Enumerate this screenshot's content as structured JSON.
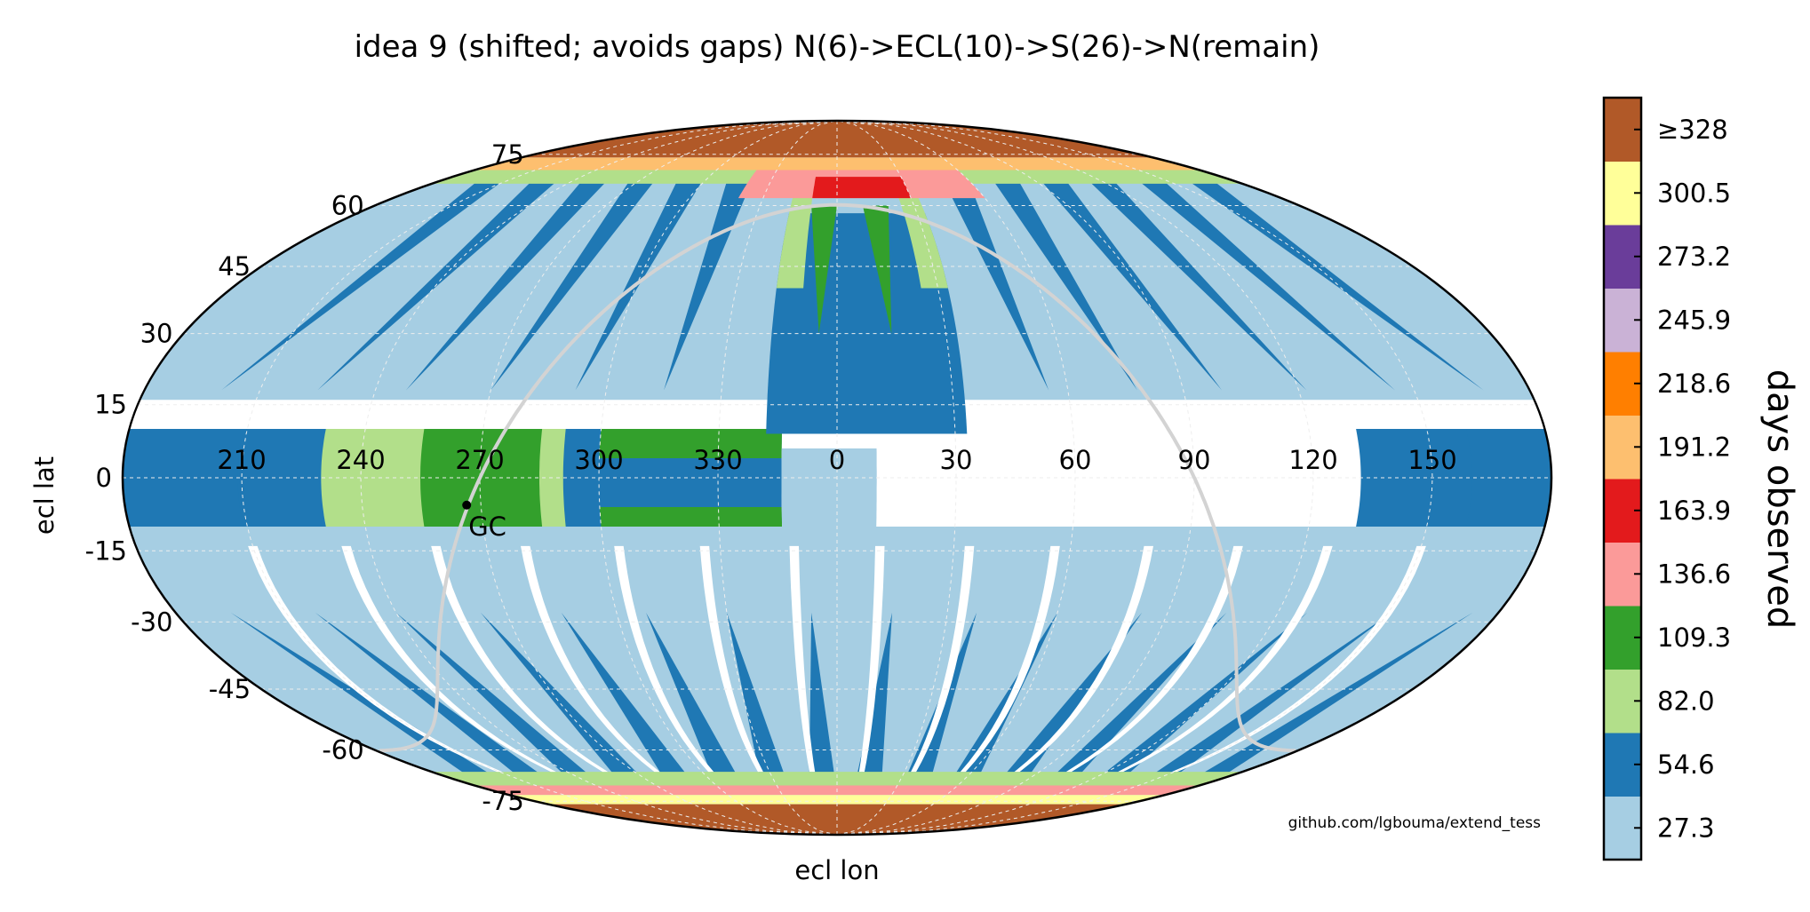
{
  "chart_data": {
    "type": "scatter",
    "projection": "mollweide",
    "title": "idea 9 (shifted; avoids gaps) N(6)->ECL(10)->S(26)->N(remain)",
    "xlabel": "ecl lon",
    "ylabel": "ecl lat",
    "lon_ticks": [
      150,
      120,
      90,
      60,
      30,
      0,
      330,
      300,
      270,
      240,
      210
    ],
    "lat_ticks": [
      75,
      60,
      45,
      30,
      15,
      0,
      -15,
      -30,
      -45,
      -60,
      -75
    ],
    "grid": true,
    "colorbar": {
      "label": "days observed",
      "ticks": [
        {
          "label": "27.3",
          "color": "#a6cee3"
        },
        {
          "label": "54.6",
          "color": "#1f78b4"
        },
        {
          "label": "82.0",
          "color": "#b2df8a"
        },
        {
          "label": "109.3",
          "color": "#33a02c"
        },
        {
          "label": "136.6",
          "color": "#fb9a99"
        },
        {
          "label": "163.9",
          "color": "#e31a1c"
        },
        {
          "label": "191.2",
          "color": "#fdbf6f"
        },
        {
          "label": "218.6",
          "color": "#ff7f00"
        },
        {
          "label": "245.9",
          "color": "#cab2d6"
        },
        {
          "label": "273.2",
          "color": "#6a3d9a"
        },
        {
          "label": "300.5",
          "color": "#ffff99"
        },
        {
          "label": "≥328",
          "color": "#b15928"
        }
      ]
    },
    "annotations": [
      {
        "label": "GC",
        "lon": 266.4,
        "lat": -5.6
      }
    ],
    "galactic_plane_color": "#d3d3d3",
    "credit": "github.com/lgbouma/extend_tess"
  }
}
